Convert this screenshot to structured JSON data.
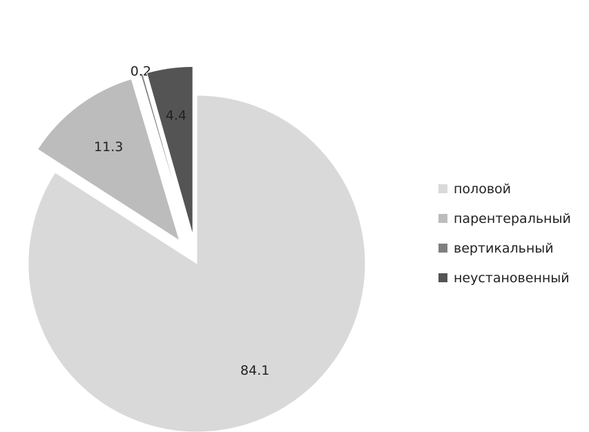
{
  "chart_data": {
    "type": "pie",
    "title": "",
    "series": [
      {
        "values": [
          84.1,
          11.3,
          0.2,
          4.4
        ],
        "labels": [
          "84.1",
          "11.3",
          "0.2",
          "4.4"
        ]
      }
    ],
    "categories": [
      "половой",
      "парентеральный",
      "вертикальный",
      "неустановенный"
    ],
    "colors": [
      "#d9d9d9",
      "#bcbcbc",
      "#7f7f7f",
      "#545454"
    ],
    "exploded": [
      false,
      true,
      true,
      true
    ],
    "legend_position": "right"
  }
}
